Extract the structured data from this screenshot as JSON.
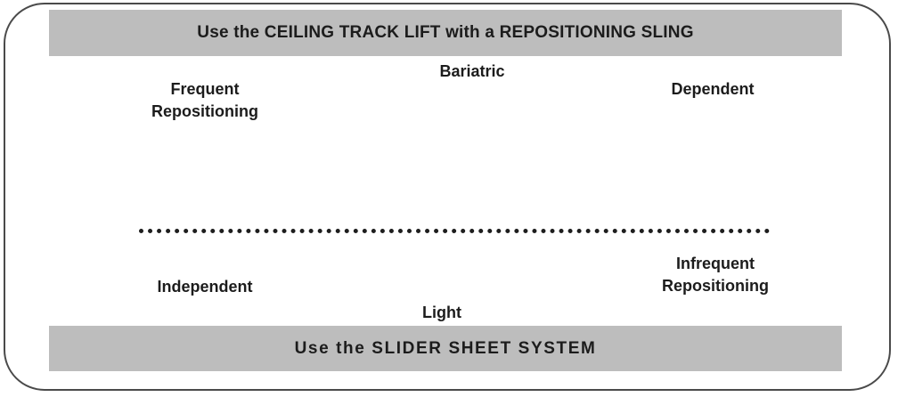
{
  "top_banner": {
    "text": "Use the CEILING TRACK LIFT with a REPOSITIONING SLING"
  },
  "bottom_banner": {
    "text": "Use the SLIDER SHEET SYSTEM"
  },
  "labels": {
    "bariatric": "Bariatric",
    "frequent_repositioning": [
      "Frequent",
      "Repositioning"
    ],
    "dependent": "Dependent",
    "independent": "Independent",
    "infrequent_repositioning": [
      "Infrequent",
      "Repositioning"
    ],
    "light": "Light"
  }
}
